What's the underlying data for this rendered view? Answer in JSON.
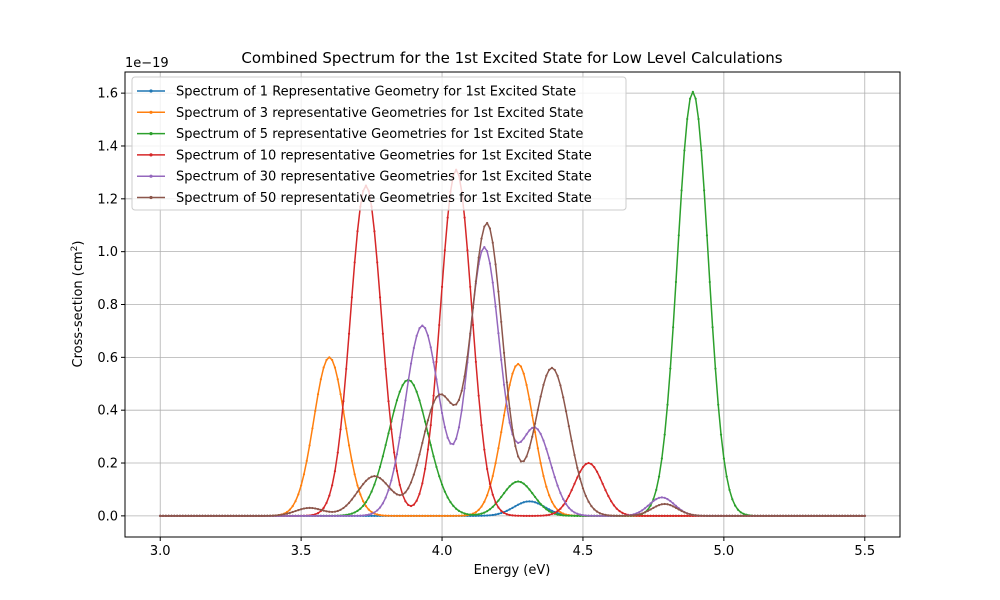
{
  "chart_data": {
    "type": "line",
    "title": "Combined Spectrum for the 1st Excited State for Low Level Calculations",
    "xlabel": "Energy (eV)",
    "ylabel": "Cross-section (cm",
    "ylabel_sup": "2",
    "ylabel_close": ")",
    "y_offset_label": "1e−19",
    "xlim": [
      2.875,
      5.625
    ],
    "ylim": [
      -0.08,
      1.68
    ],
    "x_ticks": [
      3.0,
      3.5,
      4.0,
      4.5,
      5.0,
      5.5
    ],
    "x_tick_labels": [
      "3.0",
      "3.5",
      "4.0",
      "4.5",
      "5.0",
      "5.5"
    ],
    "y_ticks": [
      0.0,
      0.2,
      0.4,
      0.6,
      0.8,
      1.0,
      1.2,
      1.4,
      1.6
    ],
    "y_tick_labels": [
      "0.0",
      "0.2",
      "0.4",
      "0.6",
      "0.8",
      "1.0",
      "1.2",
      "1.4",
      "1.6"
    ],
    "grid": true,
    "legend_position": "top-left",
    "x_range": [
      3.0,
      5.5
    ],
    "sample_step": 0.01,
    "series": [
      {
        "name": "Spectrum of 1 Representative Geometry for 1st Excited State",
        "color": "#1f77b4",
        "peaks": [
          [
            4.31,
            0.055,
            0.055
          ]
        ]
      },
      {
        "name": "Spectrum of 3 representative Geometries for 1st Excited State",
        "color": "#ff7f0e",
        "peaks": [
          [
            3.6,
            0.6,
            0.055
          ],
          [
            4.27,
            0.575,
            0.055
          ]
        ]
      },
      {
        "name": "Spectrum of 5 representative Geometries for 1st Excited State",
        "color": "#2ca02c",
        "peaks": [
          [
            3.88,
            0.515,
            0.07
          ],
          [
            4.27,
            0.13,
            0.055
          ],
          [
            4.89,
            1.605,
            0.055
          ]
        ]
      },
      {
        "name": "Spectrum of 10 representative Geometries for 1st Excited State",
        "color": "#d62728",
        "peaks": [
          [
            3.73,
            1.25,
            0.055
          ],
          [
            4.05,
            1.31,
            0.055
          ],
          [
            4.52,
            0.2,
            0.05
          ]
        ]
      },
      {
        "name": "Spectrum of 30 representative Geometries for 1st Excited State",
        "color": "#9467bd",
        "peaks": [
          [
            3.93,
            0.72,
            0.06
          ],
          [
            4.15,
            1.015,
            0.055
          ],
          [
            4.33,
            0.33,
            0.055
          ],
          [
            4.78,
            0.07,
            0.045
          ]
        ]
      },
      {
        "name": "Spectrum of 50 representative Geometries for 1st Excited State",
        "color": "#8c564b",
        "peaks": [
          [
            3.53,
            0.03,
            0.05
          ],
          [
            3.76,
            0.15,
            0.06
          ],
          [
            3.99,
            0.45,
            0.06
          ],
          [
            4.16,
            1.1,
            0.055
          ],
          [
            4.39,
            0.56,
            0.06
          ],
          [
            4.79,
            0.045,
            0.045
          ]
        ]
      }
    ]
  }
}
